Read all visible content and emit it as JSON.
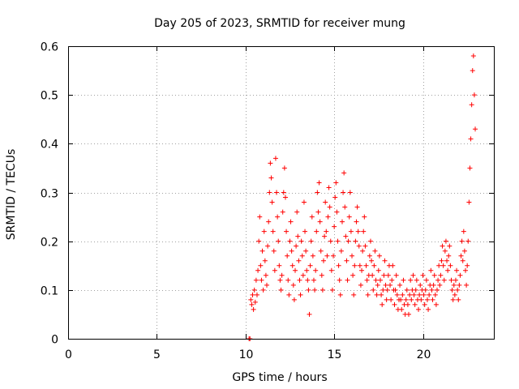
{
  "chart_data": {
    "type": "scatter",
    "title": "Day 205 of 2023, SRMTID for receiver mung",
    "xlabel": "GPS time / hours",
    "ylabel": "SRMTID / TECUs",
    "xlim": [
      0,
      24
    ],
    "ylim": [
      0,
      0.6
    ],
    "xticks": [
      0,
      5,
      10,
      15,
      20
    ],
    "yticks": [
      0,
      0.1,
      0.2,
      0.3,
      0.4,
      0.5,
      0.6
    ],
    "xtick_labels": [
      "0",
      "5",
      "10",
      "15",
      "20"
    ],
    "ytick_labels": [
      "0",
      "0.1",
      "0.2",
      "0.3",
      "0.4",
      "0.5",
      "0.6"
    ],
    "grid": true,
    "marker": "plus",
    "color": "#ff0000",
    "series": [
      {
        "name": "SRMTID",
        "points": [
          [
            10.2,
            0.0
          ],
          [
            10.25,
            0.0
          ],
          [
            10.3,
            0.08
          ],
          [
            10.35,
            0.07
          ],
          [
            10.4,
            0.09
          ],
          [
            10.45,
            0.06
          ],
          [
            10.5,
            0.1
          ],
          [
            10.55,
            0.075
          ],
          [
            10.6,
            0.12
          ],
          [
            10.65,
            0.09
          ],
          [
            10.7,
            0.14
          ],
          [
            10.75,
            0.2
          ],
          [
            10.8,
            0.25
          ],
          [
            10.85,
            0.15
          ],
          [
            10.9,
            0.12
          ],
          [
            10.95,
            0.18
          ],
          [
            11.0,
            0.1
          ],
          [
            11.05,
            0.22
          ],
          [
            11.1,
            0.16
          ],
          [
            11.15,
            0.13
          ],
          [
            11.2,
            0.11
          ],
          [
            11.25,
            0.19
          ],
          [
            11.3,
            0.24
          ],
          [
            11.35,
            0.3
          ],
          [
            11.4,
            0.36
          ],
          [
            11.45,
            0.33
          ],
          [
            11.5,
            0.28
          ],
          [
            11.55,
            0.22
          ],
          [
            11.6,
            0.18
          ],
          [
            11.65,
            0.14
          ],
          [
            11.7,
            0.37
          ],
          [
            11.75,
            0.3
          ],
          [
            11.8,
            0.25
          ],
          [
            11.85,
            0.2
          ],
          [
            11.9,
            0.15
          ],
          [
            11.95,
            0.12
          ],
          [
            12.0,
            0.1
          ],
          [
            12.05,
            0.13
          ],
          [
            12.1,
            0.26
          ],
          [
            12.15,
            0.3
          ],
          [
            12.2,
            0.35
          ],
          [
            12.25,
            0.29
          ],
          [
            12.3,
            0.22
          ],
          [
            12.35,
            0.17
          ],
          [
            12.4,
            0.12
          ],
          [
            12.45,
            0.09
          ],
          [
            12.5,
            0.2
          ],
          [
            12.55,
            0.24
          ],
          [
            12.6,
            0.18
          ],
          [
            12.65,
            0.15
          ],
          [
            12.7,
            0.11
          ],
          [
            12.75,
            0.08
          ],
          [
            12.8,
            0.14
          ],
          [
            12.85,
            0.19
          ],
          [
            12.9,
            0.26
          ],
          [
            12.95,
            0.21
          ],
          [
            13.0,
            0.16
          ],
          [
            13.05,
            0.12
          ],
          [
            13.1,
            0.09
          ],
          [
            13.15,
            0.2
          ],
          [
            13.2,
            0.17
          ],
          [
            13.25,
            0.13
          ],
          [
            13.3,
            0.28
          ],
          [
            13.35,
            0.22
          ],
          [
            13.4,
            0.18
          ],
          [
            13.45,
            0.14
          ],
          [
            13.5,
            0.12
          ],
          [
            13.55,
            0.1
          ],
          [
            13.6,
            0.05
          ],
          [
            13.65,
            0.15
          ],
          [
            13.7,
            0.2
          ],
          [
            13.75,
            0.25
          ],
          [
            13.8,
            0.17
          ],
          [
            13.85,
            0.12
          ],
          [
            13.9,
            0.1
          ],
          [
            13.95,
            0.14
          ],
          [
            14.0,
            0.22
          ],
          [
            14.05,
            0.3
          ],
          [
            14.1,
            0.26
          ],
          [
            14.15,
            0.32
          ],
          [
            14.2,
            0.24
          ],
          [
            14.25,
            0.18
          ],
          [
            14.3,
            0.13
          ],
          [
            14.35,
            0.1
          ],
          [
            14.4,
            0.16
          ],
          [
            14.45,
            0.21
          ],
          [
            14.5,
            0.28
          ],
          [
            14.55,
            0.22
          ],
          [
            14.6,
            0.17
          ],
          [
            14.65,
            0.25
          ],
          [
            14.7,
            0.31
          ],
          [
            14.75,
            0.27
          ],
          [
            14.8,
            0.2
          ],
          [
            14.85,
            0.14
          ],
          [
            14.9,
            0.1
          ],
          [
            14.95,
            0.17
          ],
          [
            15.0,
            0.23
          ],
          [
            15.05,
            0.29
          ],
          [
            15.1,
            0.32
          ],
          [
            15.15,
            0.26
          ],
          [
            15.2,
            0.2
          ],
          [
            15.25,
            0.15
          ],
          [
            15.3,
            0.12
          ],
          [
            15.35,
            0.09
          ],
          [
            15.4,
            0.18
          ],
          [
            15.45,
            0.24
          ],
          [
            15.5,
            0.3
          ],
          [
            15.55,
            0.34
          ],
          [
            15.6,
            0.27
          ],
          [
            15.65,
            0.21
          ],
          [
            15.7,
            0.16
          ],
          [
            15.75,
            0.12
          ],
          [
            15.8,
            0.2
          ],
          [
            15.85,
            0.25
          ],
          [
            15.9,
            0.3
          ],
          [
            15.95,
            0.22
          ],
          [
            16.0,
            0.17
          ],
          [
            16.05,
            0.13
          ],
          [
            16.1,
            0.09
          ],
          [
            16.15,
            0.15
          ],
          [
            16.2,
            0.2
          ],
          [
            16.25,
            0.24
          ],
          [
            16.3,
            0.27
          ],
          [
            16.35,
            0.22
          ],
          [
            16.4,
            0.19
          ],
          [
            16.45,
            0.15
          ],
          [
            16.5,
            0.11
          ],
          [
            16.55,
            0.14
          ],
          [
            16.6,
            0.18
          ],
          [
            16.65,
            0.22
          ],
          [
            16.7,
            0.25
          ],
          [
            16.75,
            0.19
          ],
          [
            16.8,
            0.15
          ],
          [
            16.85,
            0.12
          ],
          [
            16.9,
            0.09
          ],
          [
            16.95,
            0.13
          ],
          [
            17.0,
            0.17
          ],
          [
            17.05,
            0.2
          ],
          [
            17.1,
            0.16
          ],
          [
            17.15,
            0.13
          ],
          [
            17.2,
            0.1
          ],
          [
            17.25,
            0.15
          ],
          [
            17.3,
            0.18
          ],
          [
            17.35,
            0.12
          ],
          [
            17.4,
            0.09
          ],
          [
            17.45,
            0.11
          ],
          [
            17.5,
            0.14
          ],
          [
            17.55,
            0.17
          ],
          [
            17.6,
            0.12
          ],
          [
            17.65,
            0.09
          ],
          [
            17.7,
            0.07
          ],
          [
            17.75,
            0.1
          ],
          [
            17.8,
            0.13
          ],
          [
            17.85,
            0.16
          ],
          [
            17.9,
            0.11
          ],
          [
            17.95,
            0.08
          ],
          [
            18.0,
            0.1
          ],
          [
            18.05,
            0.13
          ],
          [
            18.1,
            0.15
          ],
          [
            18.15,
            0.11
          ],
          [
            18.2,
            0.08
          ],
          [
            18.25,
            0.12
          ],
          [
            18.3,
            0.15
          ],
          [
            18.35,
            0.1
          ],
          [
            18.4,
            0.07
          ],
          [
            18.45,
            0.1
          ],
          [
            18.5,
            0.13
          ],
          [
            18.55,
            0.09
          ],
          [
            18.6,
            0.06
          ],
          [
            18.65,
            0.08
          ],
          [
            18.7,
            0.11
          ],
          [
            18.75,
            0.08
          ],
          [
            18.8,
            0.06
          ],
          [
            18.85,
            0.09
          ],
          [
            18.9,
            0.12
          ],
          [
            18.95,
            0.07
          ],
          [
            19.0,
            0.05
          ],
          [
            19.05,
            0.08
          ],
          [
            19.1,
            0.1
          ],
          [
            19.15,
            0.07
          ],
          [
            19.2,
            0.05
          ],
          [
            19.25,
            0.09
          ],
          [
            19.3,
            0.12
          ],
          [
            19.35,
            0.08
          ],
          [
            19.4,
            0.1
          ],
          [
            19.45,
            0.13
          ],
          [
            19.5,
            0.09
          ],
          [
            19.55,
            0.07
          ],
          [
            19.6,
            0.1
          ],
          [
            19.65,
            0.12
          ],
          [
            19.7,
            0.08
          ],
          [
            19.75,
            0.06
          ],
          [
            19.8,
            0.09
          ],
          [
            19.85,
            0.11
          ],
          [
            19.9,
            0.08
          ],
          [
            19.95,
            0.1
          ],
          [
            20.0,
            0.13
          ],
          [
            20.05,
            0.09
          ],
          [
            20.1,
            0.07
          ],
          [
            20.15,
            0.1
          ],
          [
            20.2,
            0.12
          ],
          [
            20.25,
            0.08
          ],
          [
            20.3,
            0.06
          ],
          [
            20.35,
            0.09
          ],
          [
            20.4,
            0.11
          ],
          [
            20.45,
            0.14
          ],
          [
            20.5,
            0.1
          ],
          [
            20.55,
            0.08
          ],
          [
            20.6,
            0.11
          ],
          [
            20.65,
            0.13
          ],
          [
            20.7,
            0.09
          ],
          [
            20.75,
            0.07
          ],
          [
            20.8,
            0.1
          ],
          [
            20.85,
            0.12
          ],
          [
            20.9,
            0.15
          ],
          [
            20.95,
            0.11
          ],
          [
            21.0,
            0.13
          ],
          [
            21.05,
            0.16
          ],
          [
            21.1,
            0.19
          ],
          [
            21.15,
            0.15
          ],
          [
            21.2,
            0.12
          ],
          [
            21.25,
            0.18
          ],
          [
            21.3,
            0.2
          ],
          [
            21.35,
            0.16
          ],
          [
            21.4,
            0.14
          ],
          [
            21.45,
            0.17
          ],
          [
            21.5,
            0.19
          ],
          [
            21.55,
            0.15
          ],
          [
            21.6,
            0.12
          ],
          [
            21.65,
            0.1
          ],
          [
            21.7,
            0.08
          ],
          [
            21.75,
            0.11
          ],
          [
            21.8,
            0.09
          ],
          [
            21.85,
            0.12
          ],
          [
            21.9,
            0.14
          ],
          [
            21.95,
            0.1
          ],
          [
            22.0,
            0.08
          ],
          [
            22.05,
            0.11
          ],
          [
            22.1,
            0.13
          ],
          [
            22.15,
            0.17
          ],
          [
            22.2,
            0.2
          ],
          [
            22.25,
            0.16
          ],
          [
            22.3,
            0.22
          ],
          [
            22.35,
            0.18
          ],
          [
            22.4,
            0.14
          ],
          [
            22.45,
            0.11
          ],
          [
            22.5,
            0.15
          ],
          [
            22.55,
            0.2
          ],
          [
            22.6,
            0.28
          ],
          [
            22.65,
            0.35
          ],
          [
            22.7,
            0.41
          ],
          [
            22.75,
            0.48
          ],
          [
            22.8,
            0.55
          ],
          [
            22.85,
            0.58
          ],
          [
            22.9,
            0.5
          ],
          [
            22.95,
            0.43
          ]
        ]
      }
    ]
  }
}
